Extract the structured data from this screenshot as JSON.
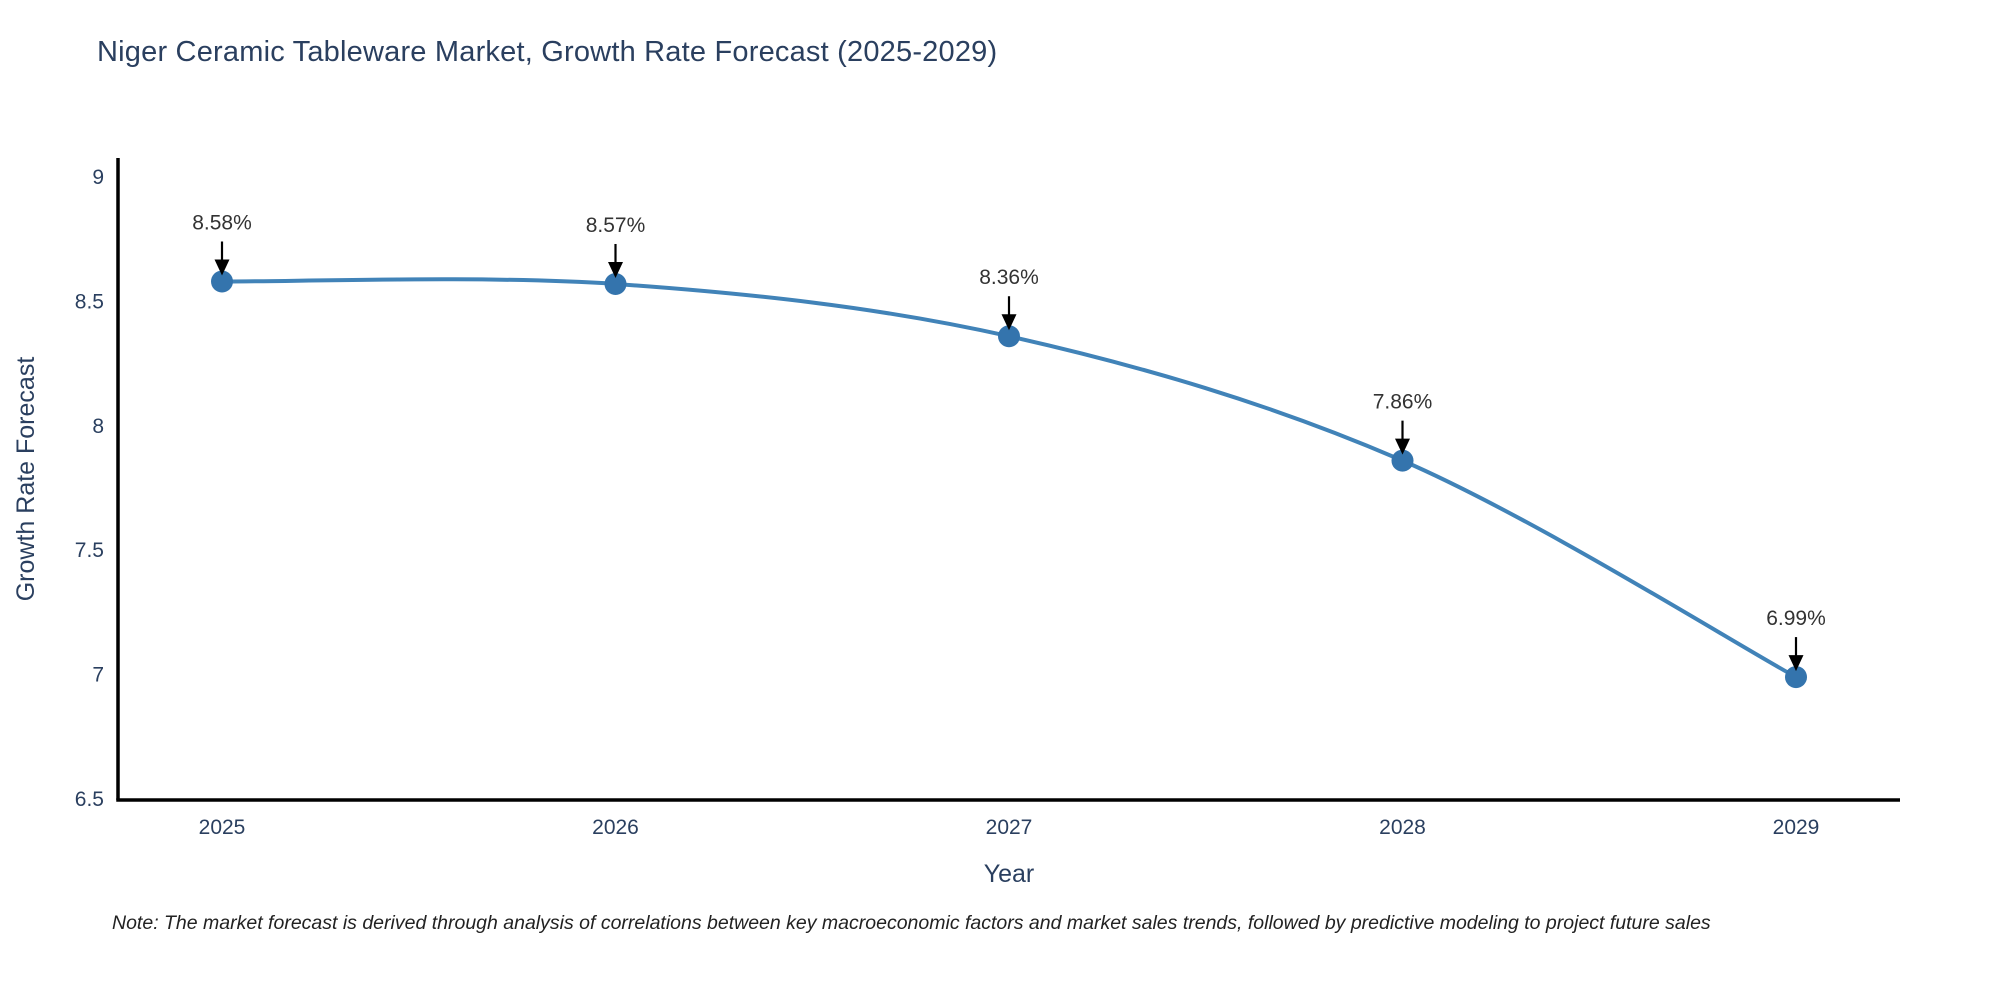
{
  "title": "Niger Ceramic Tableware Market, Growth Rate Forecast (2025-2029)",
  "note": "Note: The market forecast is derived through analysis of correlations between key macroeconomic factors and market sales trends, followed by predictive modeling to project future sales",
  "chart_data": {
    "type": "line",
    "title": "Niger Ceramic Tableware Market, Growth Rate Forecast (2025-2029)",
    "x": [
      2025,
      2026,
      2027,
      2028,
      2029
    ],
    "series": [
      {
        "name": "Growth Rate Forecast",
        "values": [
          8.58,
          8.57,
          8.36,
          7.86,
          6.99
        ]
      }
    ],
    "point_labels": [
      "8.58%",
      "8.57%",
      "8.36%",
      "7.86%",
      "6.99%"
    ],
    "xlabel": "Year",
    "ylabel": "Growth Rate Forecast",
    "ylim": [
      6.5,
      9
    ],
    "yticks": [
      6.5,
      7,
      7.5,
      8,
      8.5,
      9
    ],
    "ytick_labels": [
      "6.5",
      "7",
      "7.5",
      "8",
      "8.5",
      "9"
    ],
    "grid": false,
    "legend": "none",
    "colors": {
      "line": "#4183b8",
      "marker": "#3474ad",
      "axis": "#000000",
      "tick_text": "#2a3f5f",
      "axis_title_text": "#2a3f5f",
      "annotation_text": "#333333",
      "arrow": "#000000",
      "title_text": "#2a3f5f"
    }
  }
}
